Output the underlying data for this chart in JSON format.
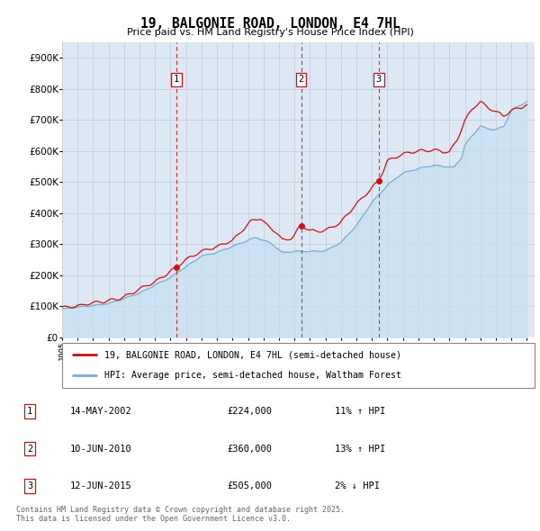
{
  "title": "19, BALGONIE ROAD, LONDON, E4 7HL",
  "subtitle": "Price paid vs. HM Land Registry's House Price Index (HPI)",
  "legend_line1": "19, BALGONIE ROAD, LONDON, E4 7HL (semi-detached house)",
  "legend_line2": "HPI: Average price, semi-detached house, Waltham Forest",
  "footer_line1": "Contains HM Land Registry data © Crown copyright and database right 2025.",
  "footer_line2": "This data is licensed under the Open Government Licence v3.0.",
  "transactions": [
    {
      "num": 1,
      "date": "14-MAY-2002",
      "price": "£224,000",
      "hpi": "11% ↑ HPI",
      "year": 2002.37
    },
    {
      "num": 2,
      "date": "10-JUN-2010",
      "price": "£360,000",
      "hpi": "13% ↑ HPI",
      "year": 2010.44
    },
    {
      "num": 3,
      "date": "12-JUN-2015",
      "price": "£505,000",
      "hpi": "2% ↓ HPI",
      "year": 2015.44
    }
  ],
  "transaction_prices": [
    224000,
    360000,
    505000
  ],
  "hpi_color": "#7aadcf",
  "hpi_fill_color": "#c5dff0",
  "price_color": "#cc1111",
  "background_chart": "#dde8f4",
  "grid_color": "#c0d0e0",
  "ylim": [
    0,
    950000
  ],
  "yticks": [
    0,
    100000,
    200000,
    300000,
    400000,
    500000,
    600000,
    700000,
    800000,
    900000
  ],
  "xmin": 1995.0,
  "xmax": 2025.5
}
